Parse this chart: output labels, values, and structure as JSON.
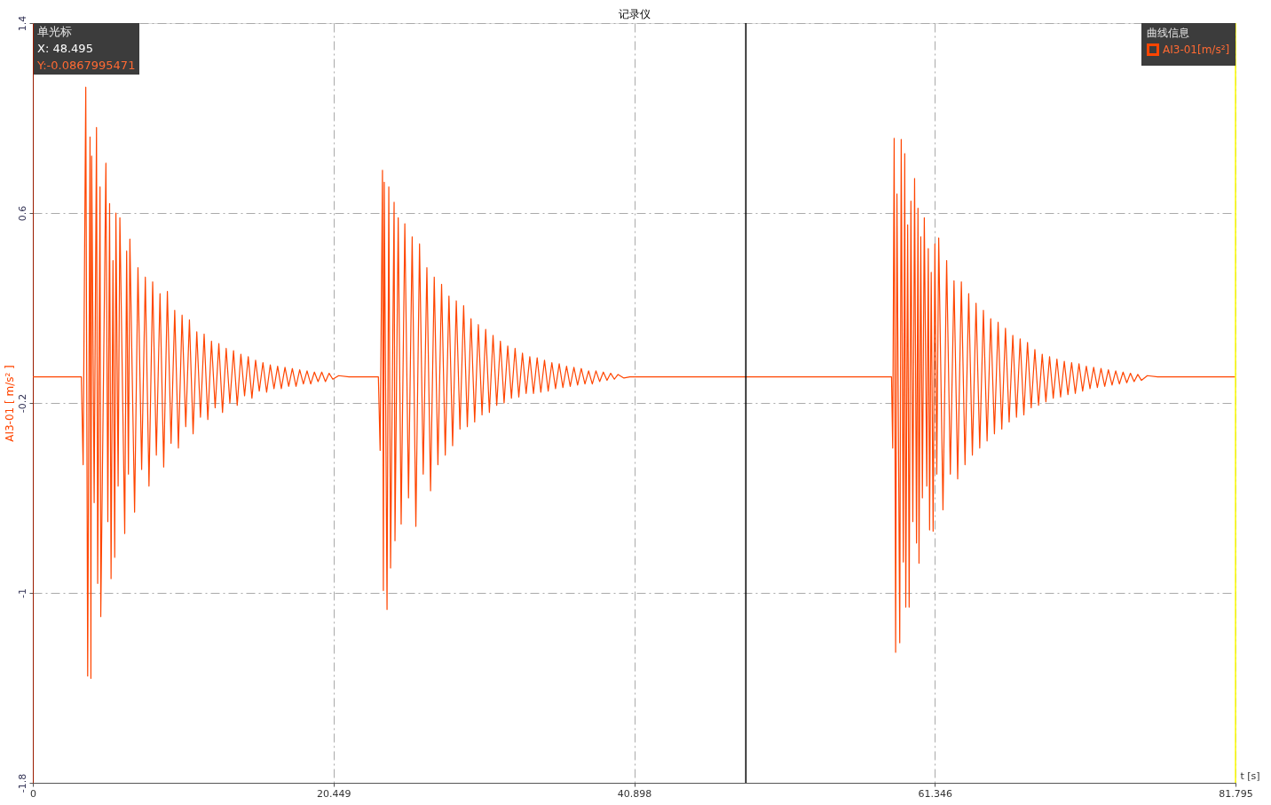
{
  "chart_data": {
    "type": "line",
    "title": "记录仪",
    "xlabel": "t [s]",
    "ylabel": "AI3-01 [ m/s² ]",
    "legend_title": "曲线信息",
    "annotations": [
      "单光标",
      "X: 48.495",
      "Y:-0.0867995471"
    ],
    "xlim": [
      0,
      81.795
    ],
    "xticks": [
      0,
      20.449,
      40.898,
      61.346,
      81.795
    ],
    "ylim": [
      -1.8,
      1.4
    ],
    "yticks": [
      -1.8,
      -1,
      -0.2,
      0.6,
      1.4
    ],
    "grid": true,
    "legend": "top right",
    "line_style": "solid",
    "ref_lines": [
      {
        "axis": "x",
        "value": 48.495,
        "color": "#000000"
      },
      {
        "axis": "x",
        "value": 81.795,
        "color": "#ffff00"
      }
    ],
    "x": [
      0,
      3.3,
      3.42,
      3.6,
      3.73,
      3.89,
      3.95,
      4.0,
      4.17,
      4.33,
      4.41,
      4.57,
      4.62,
      4.97,
      5.1,
      5.22,
      5.32,
      5.45,
      5.57,
      5.65,
      5.8,
      5.92,
      6.25,
      6.38,
      6.5,
      6.6,
      6.92,
      7.15,
      7.4,
      7.65,
      7.9,
      8.15,
      8.4,
      8.65,
      8.9,
      9.15,
      9.4,
      9.65,
      9.9,
      10.15,
      10.4,
      10.65,
      10.9,
      11.15,
      11.4,
      11.65,
      11.9,
      12.15,
      12.4,
      12.65,
      12.9,
      13.15,
      13.4,
      13.65,
      13.9,
      14.15,
      14.4,
      14.65,
      14.9,
      15.15,
      15.4,
      15.65,
      15.9,
      16.15,
      16.4,
      16.65,
      16.9,
      17.15,
      17.4,
      17.65,
      17.9,
      18.15,
      18.4,
      18.65,
      18.9,
      19.15,
      19.4,
      19.65,
      19.9,
      20.15,
      20.4,
      20.8,
      21.5,
      23.5,
      23.62,
      23.78,
      23.84,
      23.9,
      24.09,
      24.21,
      24.33,
      24.57,
      24.63,
      24.85,
      25.05,
      25.3,
      25.55,
      25.8,
      26.05,
      26.3,
      26.55,
      26.8,
      27.05,
      27.3,
      27.55,
      27.8,
      28.05,
      28.3,
      28.55,
      28.8,
      29.05,
      29.3,
      29.55,
      29.8,
      30.05,
      30.3,
      30.55,
      30.8,
      31.05,
      31.3,
      31.55,
      31.8,
      32.05,
      32.3,
      32.55,
      32.8,
      33.05,
      33.3,
      33.55,
      33.8,
      34.05,
      34.3,
      34.55,
      34.8,
      35.05,
      35.3,
      35.55,
      35.8,
      36.05,
      36.3,
      36.55,
      36.8,
      37.05,
      37.3,
      37.55,
      37.8,
      38.05,
      38.3,
      38.55,
      38.8,
      39.05,
      39.3,
      39.55,
      39.8,
      40.2,
      40.6,
      58.3,
      58.4,
      58.48,
      58.58,
      58.68,
      58.77,
      58.96,
      59.06,
      59.2,
      59.3,
      59.37,
      59.5,
      59.6,
      59.72,
      59.85,
      59.97,
      60.1,
      60.2,
      60.27,
      60.39,
      60.5,
      60.63,
      60.8,
      60.9,
      60.99,
      61.1,
      61.23,
      61.35,
      61.48,
      61.61,
      61.9,
      62.15,
      62.4,
      62.65,
      62.9,
      63.15,
      63.4,
      63.65,
      63.9,
      64.15,
      64.4,
      64.65,
      64.9,
      65.15,
      65.4,
      65.65,
      65.9,
      66.15,
      66.4,
      66.65,
      66.9,
      67.15,
      67.4,
      67.65,
      67.9,
      68.15,
      68.4,
      68.65,
      68.9,
      69.15,
      69.4,
      69.65,
      69.9,
      70.15,
      70.4,
      70.65,
      70.9,
      71.15,
      71.4,
      71.65,
      71.9,
      72.15,
      72.4,
      72.65,
      72.9,
      73.15,
      73.4,
      73.65,
      73.9,
      74.15,
      74.4,
      74.65,
      74.9,
      75.15,
      75.4,
      75.8,
      76.5,
      81.795
    ],
    "series": [
      {
        "name": "AI3-01[m/s²]",
        "color": "#ff4500",
        "values": [
          -0.09,
          -0.09,
          -0.46,
          1.13,
          -1.35,
          0.92,
          -1.36,
          0.84,
          -0.62,
          0.96,
          -0.96,
          0.71,
          -1.1,
          0.81,
          -0.7,
          0.64,
          -0.94,
          0.4,
          -0.85,
          0.6,
          -0.55,
          0.58,
          -0.75,
          0.44,
          -0.5,
          0.49,
          -0.66,
          0.37,
          -0.48,
          0.33,
          -0.55,
          0.31,
          -0.42,
          0.26,
          -0.47,
          0.27,
          -0.37,
          0.19,
          -0.39,
          0.17,
          -0.3,
          0.15,
          -0.33,
          0.1,
          -0.26,
          0.09,
          -0.27,
          0.06,
          -0.22,
          0.05,
          -0.24,
          0.03,
          -0.2,
          0.02,
          -0.21,
          0.005,
          -0.17,
          -0.005,
          -0.18,
          -0.02,
          -0.15,
          -0.03,
          -0.155,
          -0.04,
          -0.14,
          -0.045,
          -0.14,
          -0.05,
          -0.13,
          -0.055,
          -0.13,
          -0.06,
          -0.12,
          -0.065,
          -0.12,
          -0.07,
          -0.11,
          -0.07,
          -0.11,
          -0.075,
          -0.1,
          -0.085,
          -0.09,
          -0.09,
          -0.4,
          0.78,
          -0.99,
          0.73,
          -1.07,
          0.71,
          -0.895,
          0.645,
          -0.78,
          0.58,
          -0.71,
          0.555,
          -0.6,
          0.5,
          -0.72,
          0.47,
          -0.5,
          0.37,
          -0.57,
          0.33,
          -0.46,
          0.3,
          -0.42,
          0.25,
          -0.38,
          0.23,
          -0.31,
          0.21,
          -0.3,
          0.155,
          -0.28,
          0.13,
          -0.25,
          0.11,
          -0.24,
          0.085,
          -0.21,
          0.06,
          -0.2,
          0.04,
          -0.18,
          0.03,
          -0.175,
          0.01,
          -0.16,
          -0.005,
          -0.16,
          -0.01,
          -0.155,
          -0.02,
          -0.15,
          -0.03,
          -0.14,
          -0.035,
          -0.135,
          -0.045,
          -0.13,
          -0.05,
          -0.125,
          -0.055,
          -0.12,
          -0.065,
          -0.12,
          -0.065,
          -0.11,
          -0.07,
          -0.105,
          -0.075,
          -0.1,
          -0.08,
          -0.095,
          -0.09,
          -0.09,
          -0.09,
          -0.39,
          0.915,
          -1.25,
          0.68,
          -1.21,
          0.91,
          -0.87,
          0.85,
          -1.06,
          0.55,
          -1.06,
          0.65,
          -0.7,
          0.745,
          -0.79,
          0.62,
          -0.875,
          0.5,
          -0.6,
          0.58,
          -0.55,
          0.45,
          -0.735,
          0.35,
          -0.74,
          0.47,
          -0.5,
          0.495,
          -0.65,
          0.4,
          -0.5,
          0.315,
          -0.52,
          0.31,
          -0.46,
          0.26,
          -0.42,
          0.22,
          -0.39,
          0.19,
          -0.36,
          0.155,
          -0.33,
          0.14,
          -0.31,
          0.115,
          -0.28,
          0.085,
          -0.26,
          0.07,
          -0.25,
          0.055,
          -0.22,
          0.025,
          -0.21,
          0.005,
          -0.195,
          -0.005,
          -0.18,
          -0.015,
          -0.175,
          -0.025,
          -0.165,
          -0.03,
          -0.16,
          -0.035,
          -0.15,
          -0.045,
          -0.14,
          -0.05,
          -0.135,
          -0.055,
          -0.13,
          -0.06,
          -0.125,
          -0.065,
          -0.12,
          -0.07,
          -0.115,
          -0.075,
          -0.11,
          -0.08,
          -0.105,
          -0.085,
          -0.09,
          -0.09
        ]
      }
    ]
  }
}
